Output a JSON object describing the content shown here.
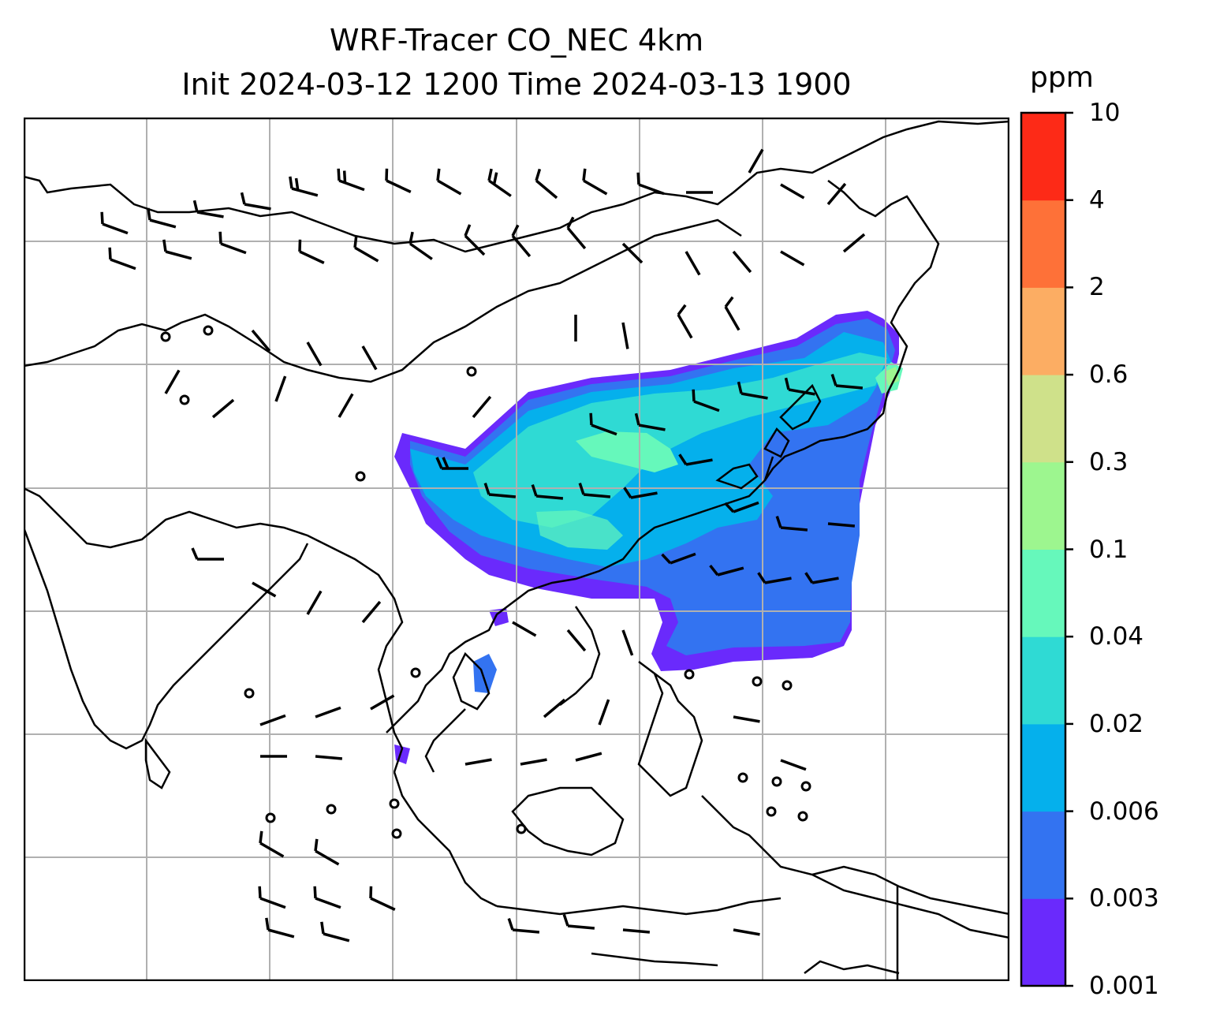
{
  "title": {
    "line1": "WRF-Tracer CO_NEC 4km",
    "line2": "Init 2024-03-12 1200 Time 2024-03-13 1900"
  },
  "colorbar": {
    "unit": "ppm",
    "levels": [
      "0.001",
      "0.003",
      "0.006",
      "0.02",
      "0.04",
      "0.1",
      "0.3",
      "0.6",
      "2",
      "4",
      "10"
    ],
    "colors": [
      "#6a2afc",
      "#3373f1",
      "#05b0ec",
      "#2fdad4",
      "#66f8bb",
      "#9df68f",
      "#cfe18a",
      "#fcad63",
      "#fe7138",
      "#fd2a17"
    ]
  },
  "map": {
    "gridlines": true,
    "wind_barbs": true,
    "calm_circles": true
  }
}
